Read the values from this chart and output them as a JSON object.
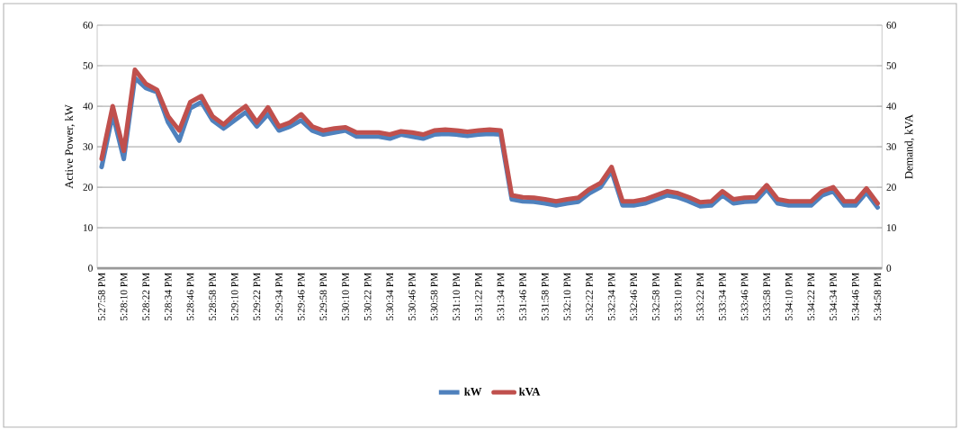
{
  "chart_data": {
    "type": "line",
    "categories": [
      "5:27:58 PM",
      null,
      "5:28:10 PM",
      null,
      "5:28:22 PM",
      null,
      "5:28:34 PM",
      null,
      "5:28:46 PM",
      null,
      "5:28:58 PM",
      null,
      "5:29:10 PM",
      null,
      "5:29:22 PM",
      null,
      "5:29:34 PM",
      null,
      "5:29:46 PM",
      null,
      "5:29:58 PM",
      null,
      "5:30:10 PM",
      null,
      "5:30:22 PM",
      null,
      "5:30:34 PM",
      null,
      "5:30:46 PM",
      null,
      "5:30:58 PM",
      null,
      "5:31:10 PM",
      null,
      "5:31:22 PM",
      null,
      "5:31:34 PM",
      null,
      "5:31:46 PM",
      null,
      "5:31:58 PM",
      null,
      "5:32:10 PM",
      null,
      "5:32:22 PM",
      null,
      "5:32:34 PM",
      null,
      "5:32:46 PM",
      null,
      "5:32:58 PM",
      null,
      "5:33:10 PM",
      null,
      "5:33:22 PM",
      null,
      "5:33:34 PM",
      null,
      "5:33:46 PM",
      null,
      "5:33:58 PM",
      null,
      "5:34:10 PM",
      null,
      "5:34:22 PM",
      null,
      "5:34:34 PM",
      null,
      "5:34:46 PM",
      null,
      "5:34:58 PM"
    ],
    "series": [
      {
        "name": "kW",
        "color": "#4f81bd",
        "values": [
          25,
          38,
          27,
          47,
          44.5,
          43.5,
          36,
          31.5,
          39.5,
          41,
          36.5,
          34.5,
          36.5,
          38.5,
          35,
          38,
          34,
          35,
          36.5,
          34,
          33,
          33.5,
          34,
          32.5,
          32.5,
          32.5,
          32,
          33,
          32.5,
          32,
          33,
          33.2,
          33,
          32.7,
          33,
          33.2,
          33,
          17,
          16.5,
          16.4,
          16,
          15.5,
          16,
          16.4,
          18.5,
          20,
          24,
          15.5,
          15.5,
          16,
          17,
          18,
          17.5,
          16.5,
          15.3,
          15.5,
          18,
          16,
          16.4,
          16.5,
          19.5,
          16,
          15.5,
          15.5,
          15.5,
          18,
          19,
          15.5,
          15.5,
          18.7,
          15
        ]
      },
      {
        "name": "kVA",
        "color": "#c0504d",
        "axis": "y2",
        "values": [
          27,
          40,
          29,
          49,
          45.5,
          44,
          37.5,
          34,
          41,
          42.5,
          37.5,
          35.5,
          38,
          40,
          36,
          39.7,
          35,
          36,
          38,
          35,
          34,
          34.5,
          34.8,
          33.5,
          33.5,
          33.5,
          33,
          33.8,
          33.5,
          33,
          34,
          34.2,
          34,
          33.7,
          34,
          34.2,
          34,
          18,
          17.5,
          17.4,
          17,
          16.5,
          17,
          17.4,
          19.5,
          21,
          25,
          16.5,
          16.5,
          17,
          18,
          19,
          18.5,
          17.5,
          16.3,
          16.5,
          19,
          17,
          17.4,
          17.5,
          20.5,
          17,
          16.5,
          16.5,
          16.5,
          19,
          20,
          16.5,
          16.5,
          19.7,
          16
        ]
      }
    ],
    "ylabel": "Active Power, kW",
    "y2label": "Demand, kVA",
    "ylim": [
      0,
      60
    ],
    "yticks": [
      0,
      10,
      20,
      30,
      40,
      50,
      60
    ],
    "y2lim": [
      0,
      60
    ],
    "y2ticks": [
      0,
      10,
      20,
      30,
      40,
      50,
      60
    ],
    "grid": "y",
    "legend": "bottom",
    "marker": "none",
    "line_style": "solid"
  }
}
